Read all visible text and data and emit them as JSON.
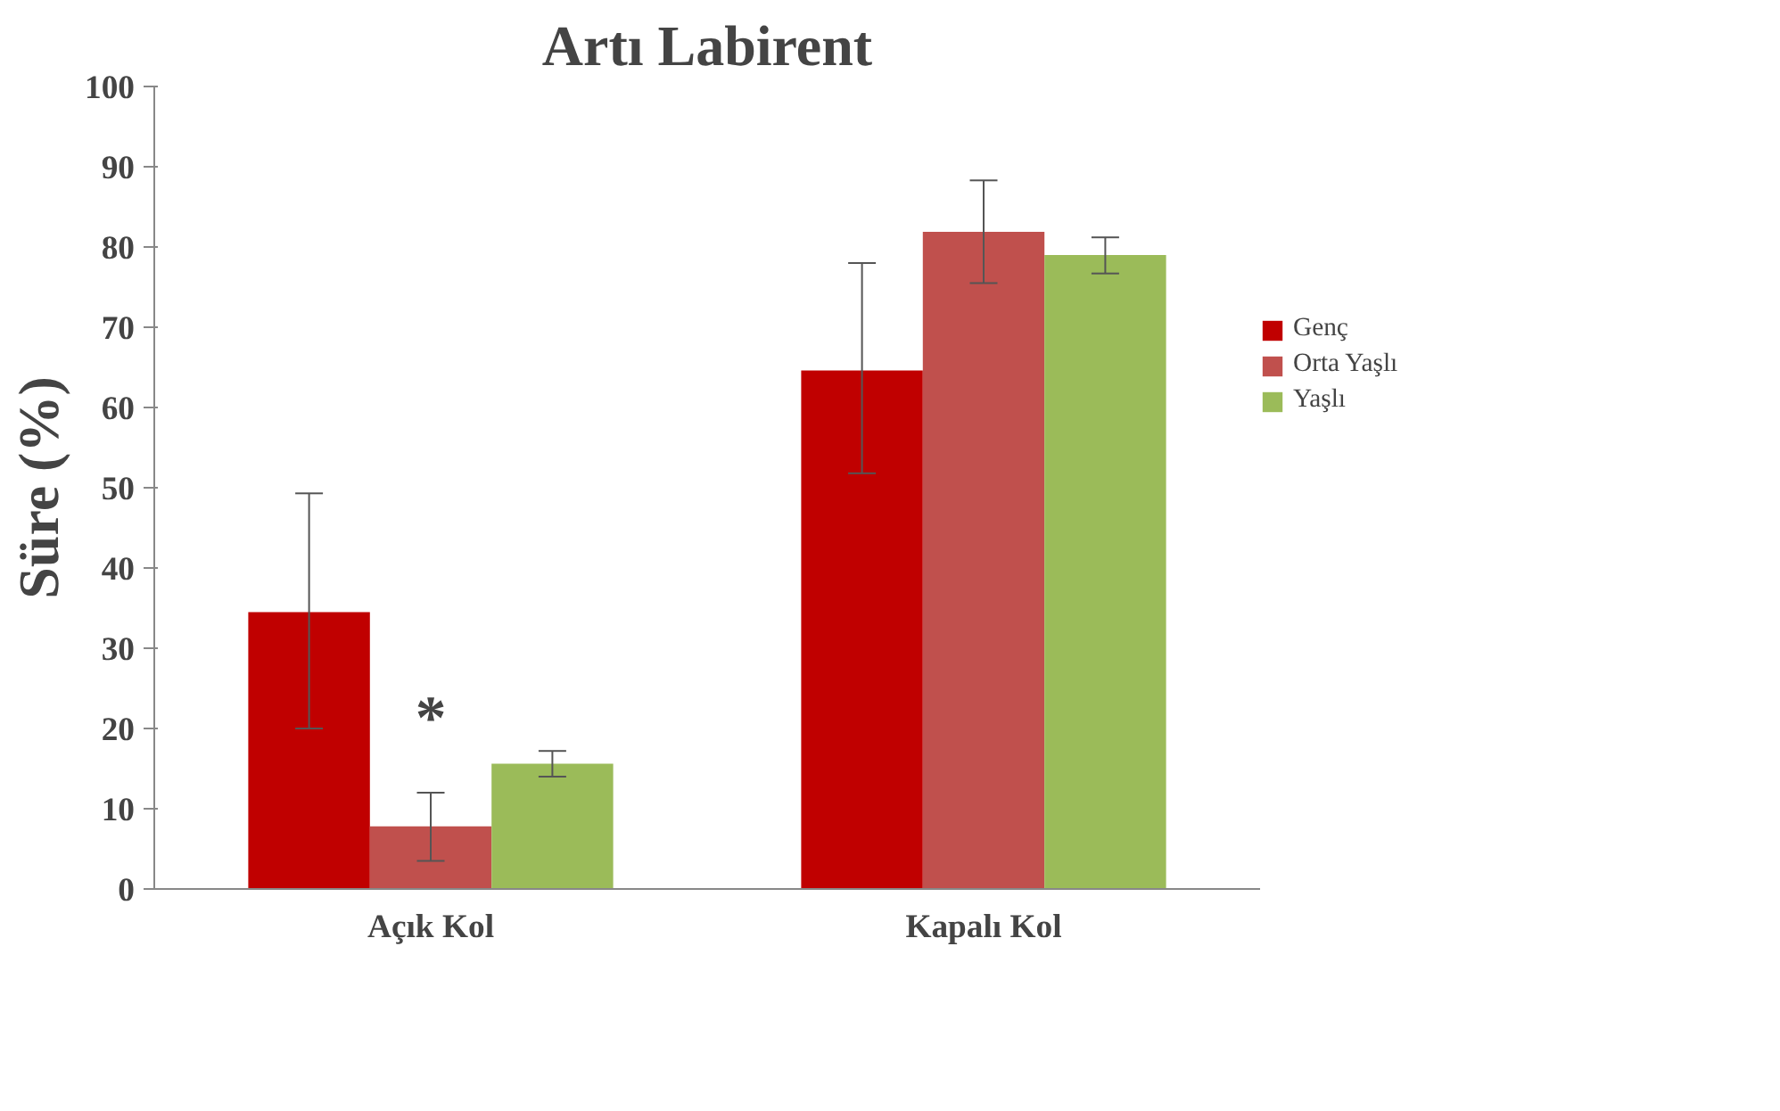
{
  "chart_data": {
    "type": "bar",
    "title": "Artı Labirent",
    "ylabel": "Süre (%)",
    "categories": [
      "Açık Kol",
      "Kapalı Kol"
    ],
    "series": [
      {
        "name": "Genç",
        "color": "#c00000",
        "values": [
          34.5,
          64.6
        ],
        "errors": [
          [
            20,
            49.3
          ],
          [
            51.8,
            78
          ]
        ]
      },
      {
        "name": "Orta Yaşlı",
        "color": "#c0504d",
        "values": [
          7.8,
          81.9
        ],
        "errors": [
          [
            3.5,
            12
          ],
          [
            75.5,
            88.3
          ]
        ]
      },
      {
        "name": "Yaşlı",
        "color": "#9bbb59",
        "values": [
          15.6,
          79
        ],
        "errors": [
          [
            14,
            17.2
          ],
          [
            76.7,
            81.2
          ]
        ]
      }
    ],
    "ylim": [
      0,
      100
    ],
    "yticks": [
      0,
      10,
      20,
      30,
      40,
      50,
      60,
      70,
      80,
      90,
      100
    ],
    "grid": false,
    "legend": "right",
    "annotations": [
      "*"
    ]
  }
}
